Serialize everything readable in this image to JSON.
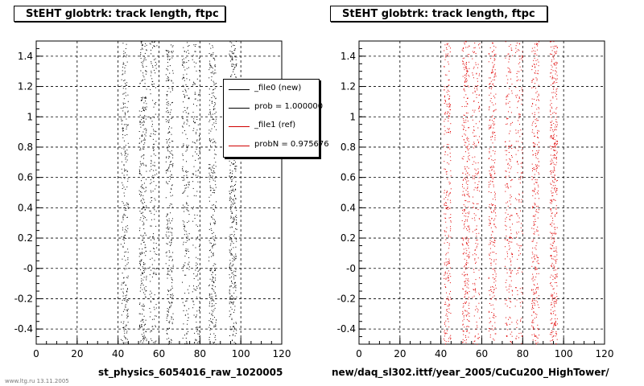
{
  "chart_data": [
    {
      "type": "scatter",
      "title": "StEHT globtrk: track length, ftpc",
      "xlabel": "st_physics_6054016_raw_1020005",
      "ylabel": "",
      "xlim": [
        0,
        120
      ],
      "ylim": [
        -0.5,
        1.5
      ],
      "x_ticks": [
        "0",
        "20",
        "40",
        "60",
        "80",
        "100",
        "120"
      ],
      "y_ticks": [
        "-0.4",
        "-0.2",
        "-0",
        "0.2",
        "0.4",
        "0.6",
        "0.8",
        "1",
        "1.2",
        "1.4"
      ],
      "grid": true,
      "series": [
        {
          "name": "_file0 (new)",
          "color": "#000000",
          "x_bands": [
            43,
            52,
            57,
            65,
            73,
            78,
            86,
            96
          ],
          "band_density": [
            1,
            1.3,
            0.7,
            1.1,
            0.8,
            0.6,
            1.2,
            1.6
          ]
        }
      ],
      "legend": {
        "position": "top-right",
        "entries": [
          {
            "label": "_file0 (new)",
            "color": "#000000"
          },
          {
            "label": "prob = 1.000000",
            "color": "#000000"
          },
          {
            "label": "_file1 (ref)",
            "color": "#d00000"
          },
          {
            "label": "probN = 0.975676",
            "color": "#d00000"
          }
        ]
      }
    },
    {
      "type": "scatter",
      "title": "StEHT globtrk: track length, ftpc",
      "xlabel": "new/daq_sl302.ittf/year_2005/CuCu200_HighTower/",
      "ylabel": "",
      "xlim": [
        0,
        120
      ],
      "ylim": [
        -0.5,
        1.5
      ],
      "x_ticks": [
        "0",
        "20",
        "40",
        "60",
        "80",
        "100",
        "120"
      ],
      "y_ticks": [
        "-0.4",
        "-0.2",
        "-0",
        "0.2",
        "0.4",
        "0.6",
        "0.8",
        "1",
        "1.2",
        "1.4"
      ],
      "grid": true,
      "series": [
        {
          "name": "_file1 (ref)",
          "color": "#e00000",
          "x_bands": [
            43,
            52,
            57,
            65,
            73,
            78,
            86,
            95
          ],
          "band_density": [
            1,
            1.3,
            0.7,
            1.1,
            0.8,
            0.6,
            1.2,
            1.6
          ]
        }
      ]
    }
  ],
  "footer": "www.ltg.ru 13.11.2005"
}
